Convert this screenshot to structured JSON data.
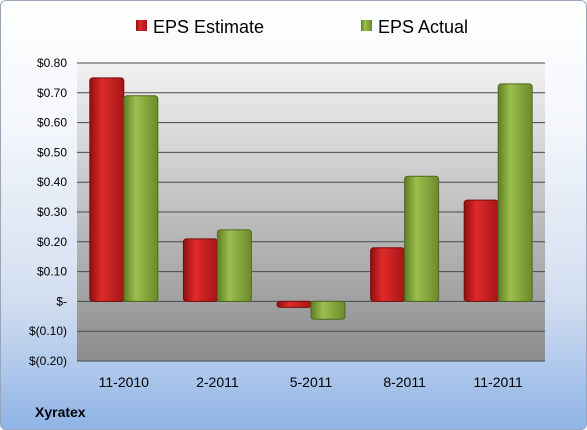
{
  "company": "Xyratex",
  "colors": {
    "estimate": "#cc1f1f",
    "actual": "#8aad3e",
    "plot_bg_top": "#f2f2f2",
    "plot_bg_bottom": "#8c8c8c"
  },
  "chart_data": {
    "type": "bar",
    "categories": [
      "11-2010",
      "2-2011",
      "5-2011",
      "8-2011",
      "11-2011"
    ],
    "series": [
      {
        "name": "EPS Estimate",
        "values": [
          0.75,
          0.21,
          -0.02,
          0.18,
          0.34
        ]
      },
      {
        "name": "EPS Actual",
        "values": [
          0.69,
          0.24,
          -0.06,
          0.42,
          0.73
        ]
      }
    ],
    "ylim": [
      -0.2,
      0.8
    ],
    "yticks": [
      0.8,
      0.7,
      0.6,
      0.5,
      0.4,
      0.3,
      0.2,
      0.1,
      0,
      -0.1,
      -0.2
    ],
    "ytick_labels": [
      "$0.80",
      "$0.70",
      "$0.60",
      "$0.50",
      "$0.40",
      "$0.30",
      "$0.20",
      "$0.10",
      "$-",
      "$(0.10)",
      "$(0.20)"
    ],
    "legend_position": "top",
    "grid": true
  }
}
